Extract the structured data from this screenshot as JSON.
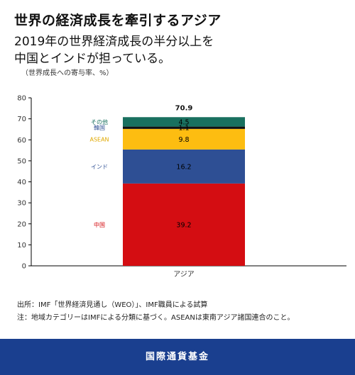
{
  "header": {
    "title": "世界の経済成長を牽引するアジア",
    "subtitle_line1": "2019年の世界経済成長の半分以上を",
    "subtitle_line2": "中国とインドが担っている。",
    "unit_note": "（世界成長への寄与率、%）"
  },
  "chart_data": {
    "type": "bar",
    "stacked": true,
    "categories": [
      "アジア"
    ],
    "total_label": "70.9",
    "ylim": [
      0,
      80
    ],
    "yticks": [
      0,
      10,
      20,
      30,
      40,
      50,
      60,
      70,
      80
    ],
    "grid": false,
    "legend": "inline-left",
    "series": [
      {
        "name": "中国",
        "values": [
          39.2
        ],
        "label": "39.2",
        "color": "#d40d12",
        "label_color": "#d40d12"
      },
      {
        "name": "インド",
        "values": [
          16.2
        ],
        "label": "16.2",
        "color": "#2e4f94",
        "label_color": "#2e4f94"
      },
      {
        "name": "ASEAN",
        "values": [
          9.8
        ],
        "label": "9.8",
        "color": "#fdbd11",
        "label_color": "#e0a800"
      },
      {
        "name": "韓国",
        "values": [
          1.1
        ],
        "label": "1.1",
        "color": "#111111",
        "label_color": "#2e4f94"
      },
      {
        "name": "その他",
        "values": [
          4.5
        ],
        "label": "4.5",
        "color": "#19705f",
        "label_color": "#19705f"
      }
    ]
  },
  "notes": {
    "source": "出所：IMF「世界経済見通し（WEO）」、IMF職員による試算",
    "note": "注：地域カテゴリーはIMFによる分類に基づく。ASEANは東南アジア諸国連合のこと。"
  },
  "footer": {
    "label": "国際通貨基金"
  }
}
